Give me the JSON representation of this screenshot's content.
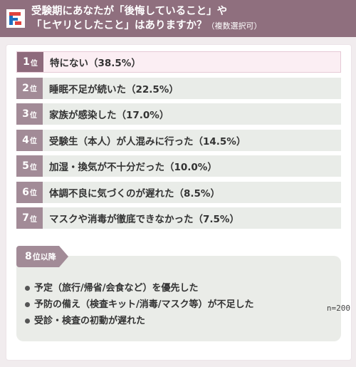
{
  "header": {
    "title_line1": "受験期にあなたが「後悔していること」や",
    "title_line2": "「ヒヤリとしたこと」はありますか？",
    "title_note": "（複数選択可）",
    "logo_icon": "brand-f-icon",
    "colors": {
      "header_bg": "#8f6f7e",
      "rank_bg": "#a28b97",
      "rank_first_bg": "#8e6a7c"
    }
  },
  "chart_data": {
    "type": "table",
    "rank_unit": "位",
    "rows": [
      {
        "rank": "1",
        "label": "特にない（38.5%）",
        "value": 38.5
      },
      {
        "rank": "2",
        "label": "睡眠不足が続いた（22.5%）",
        "value": 22.5
      },
      {
        "rank": "3",
        "label": "家族が感染した（17.0%）",
        "value": 17.0
      },
      {
        "rank": "4",
        "label": "受験生（本人）が人混みに行った（14.5%）",
        "value": 14.5
      },
      {
        "rank": "5",
        "label": "加湿・換気が不十分だった（10.0%）",
        "value": 10.0
      },
      {
        "rank": "6",
        "label": "体調不良に気づくのが遅れた（8.5%）",
        "value": 8.5
      },
      {
        "rank": "7",
        "label": "マスクや消毒が徹底できなかった（7.5%）",
        "value": 7.5
      }
    ],
    "others": {
      "rank": "8",
      "rank_suffix": "位以降",
      "items": [
        "予定（旅行/帰省/会食など）を優先した",
        "予防の備え（検査キット/消毒/マスク等）が不足した",
        "受診・検査の初動が遅れた"
      ]
    },
    "footnote": "n=200"
  }
}
